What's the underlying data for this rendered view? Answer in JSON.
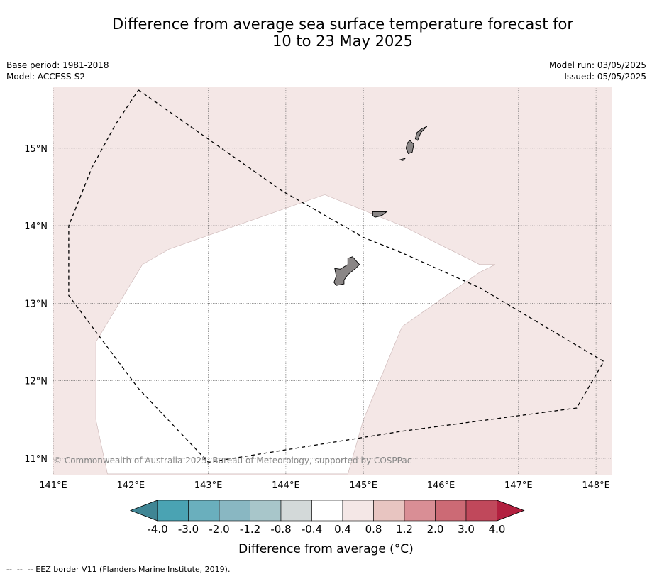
{
  "title": {
    "line1": "Difference from average sea surface temperature forecast for",
    "line2": "10 to 23 May 2025"
  },
  "meta_left": {
    "base_period": "Base period: 1981-2018",
    "model": "Model: ACCESS-S2"
  },
  "meta_right": {
    "model_run": "Model run: 03/05/2025",
    "issued": "Issued: 05/05/2025"
  },
  "map": {
    "lon_range": [
      141.0,
      148.2
    ],
    "lat_range": [
      10.8,
      15.8
    ],
    "lon_ticks": [
      141,
      142,
      143,
      144,
      145,
      146,
      147,
      148
    ],
    "lat_ticks": [
      11,
      12,
      13,
      14,
      15
    ],
    "lon_tick_labels": [
      "141°E",
      "142°E",
      "143°E",
      "144°E",
      "145°E",
      "146°E",
      "147°E",
      "148°E"
    ],
    "lat_tick_labels": [
      "11°N",
      "12°N",
      "13°N",
      "14°N",
      "15°N"
    ],
    "background_category": "0.4 to 0.8",
    "neutral_region": {
      "category": "-0.4 to 0.4",
      "lonlat": [
        [
          141.7,
          10.8
        ],
        [
          141.55,
          11.5
        ],
        [
          141.55,
          12.5
        ],
        [
          142.15,
          13.5
        ],
        [
          142.5,
          13.7
        ],
        [
          144.5,
          14.4
        ],
        [
          145.5,
          14.0
        ],
        [
          146.5,
          13.5
        ],
        [
          146.7,
          13.5
        ],
        [
          146.5,
          13.4
        ],
        [
          145.5,
          12.7
        ],
        [
          145.0,
          11.5
        ],
        [
          144.8,
          10.8
        ]
      ]
    },
    "eez_border": [
      [
        142.1,
        15.75
      ],
      [
        143.95,
        14.45
      ],
      [
        145.0,
        13.85
      ],
      [
        145.5,
        13.65
      ],
      [
        146.5,
        13.2
      ],
      [
        148.1,
        12.25
      ],
      [
        147.75,
        11.65
      ],
      [
        145.5,
        11.35
      ],
      [
        143.0,
        10.95
      ],
      [
        142.1,
        11.9
      ],
      [
        141.2,
        13.1
      ],
      [
        141.2,
        14.0
      ],
      [
        141.5,
        14.75
      ],
      [
        141.8,
        15.3
      ],
      [
        142.1,
        15.75
      ]
    ],
    "islands": [
      {
        "name": "guam",
        "lonlat": [
          [
            144.86,
            13.6
          ],
          [
            144.95,
            13.5
          ],
          [
            144.9,
            13.45
          ],
          [
            144.8,
            13.37
          ],
          [
            144.75,
            13.3
          ],
          [
            144.75,
            13.25
          ],
          [
            144.65,
            13.23
          ],
          [
            144.62,
            13.27
          ],
          [
            144.65,
            13.35
          ],
          [
            144.63,
            13.45
          ],
          [
            144.7,
            13.44
          ],
          [
            144.8,
            13.5
          ],
          [
            144.8,
            13.58
          ]
        ]
      },
      {
        "name": "rota",
        "lonlat": [
          [
            145.12,
            14.18
          ],
          [
            145.3,
            14.18
          ],
          [
            145.25,
            14.14
          ],
          [
            145.2,
            14.12
          ],
          [
            145.15,
            14.11
          ],
          [
            145.12,
            14.13
          ]
        ]
      },
      {
        "name": "tinian",
        "lonlat": [
          [
            145.6,
            15.1
          ],
          [
            145.65,
            15.05
          ],
          [
            145.63,
            14.95
          ],
          [
            145.58,
            14.93
          ],
          [
            145.55,
            15.0
          ],
          [
            145.57,
            15.07
          ]
        ]
      },
      {
        "name": "saipan",
        "lonlat": [
          [
            145.75,
            15.25
          ],
          [
            145.82,
            15.28
          ],
          [
            145.74,
            15.2
          ],
          [
            145.7,
            15.1
          ],
          [
            145.67,
            15.12
          ],
          [
            145.69,
            15.2
          ]
        ]
      },
      {
        "name": "aguijan",
        "lonlat": [
          [
            145.47,
            14.85
          ],
          [
            145.54,
            14.87
          ],
          [
            145.51,
            14.84
          ]
        ]
      }
    ],
    "copyright": "© Commonwealth of Australia 2025, Bureau of Meteorology, supported by COSPPac"
  },
  "colorbar": {
    "tick_labels": [
      "-4.0",
      "-3.0",
      "-2.0",
      "-1.2",
      "-0.8",
      "-0.4",
      "0.4",
      "0.8",
      "1.2",
      "2.0",
      "3.0",
      "4.0"
    ],
    "colors": [
      "#4aa3b3",
      "#6aafbd",
      "#89b7c2",
      "#a8c6ca",
      "#d3d9d9",
      "#ffffff",
      "#f4e7e6",
      "#e8c5c1",
      "#d98e95",
      "#cc6a75",
      "#c0485b"
    ],
    "under_color": "#3f8594",
    "over_color": "#b2203f",
    "label": "Difference from average (°C)"
  },
  "footnote": "--  --  -- EEZ border V11 (Flanders Marine Institute, 2019)."
}
